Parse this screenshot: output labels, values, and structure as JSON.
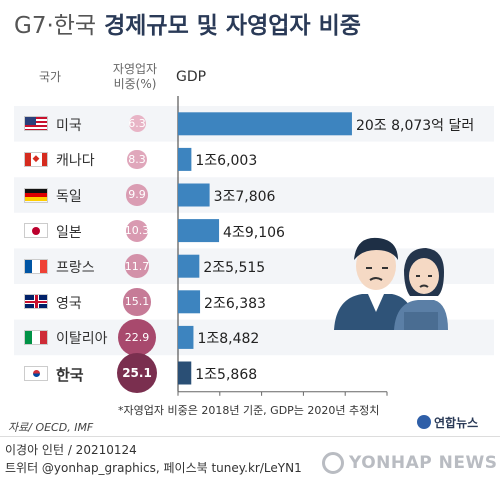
{
  "header": {
    "prefix": "G7·한국",
    "title": "경제규모 및 자영업자 비중"
  },
  "column_headers": {
    "country": "국가",
    "self_employed": "자영업자\n비중(%)",
    "gdp": "GDP"
  },
  "rows": [
    {
      "country": "미국",
      "flag": "flag-usa",
      "self_employed_pct": "6.3",
      "gdp_label": "20조 8,073억 달러",
      "bold": false
    },
    {
      "country": "캐나다",
      "flag": "flag-canada",
      "self_employed_pct": "8.3",
      "gdp_label": "1조6,003",
      "bold": false
    },
    {
      "country": "독일",
      "flag": "flag-germany",
      "self_employed_pct": "9.9",
      "gdp_label": "3조7,806",
      "bold": false
    },
    {
      "country": "일본",
      "flag": "flag-japan",
      "self_employed_pct": "10.3",
      "gdp_label": "4조9,106",
      "bold": false
    },
    {
      "country": "프랑스",
      "flag": "flag-france",
      "self_employed_pct": "11.7",
      "gdp_label": "2조5,515",
      "bold": false
    },
    {
      "country": "영국",
      "flag": "flag-uk",
      "self_employed_pct": "15.1",
      "gdp_label": "2조6,383",
      "bold": false
    },
    {
      "country": "이탈리아",
      "flag": "flag-italy",
      "self_employed_pct": "22.9",
      "gdp_label": "1조8,482",
      "bold": false
    },
    {
      "country": "한국",
      "flag": "flag-korea",
      "self_employed_pct": "25.1",
      "gdp_label": "1조5,868",
      "bold": true
    }
  ],
  "chart_data": {
    "type": "bar",
    "orientation": "horizontal",
    "categories": [
      "미국",
      "캐나다",
      "독일",
      "일본",
      "프랑스",
      "영국",
      "이탈리아",
      "한국"
    ],
    "series": [
      {
        "name": "GDP",
        "values": [
          20.8073,
          1.6003,
          3.7806,
          4.9106,
          2.5515,
          2.6383,
          1.8482,
          1.5868
        ]
      },
      {
        "name": "자영업자 비중(%)",
        "values": [
          6.3,
          8.3,
          9.9,
          10.3,
          11.7,
          15.1,
          22.9,
          25.1
        ]
      }
    ],
    "xlim": [
      0,
      25
    ],
    "xticks": [
      "0",
      "5",
      "10",
      "15",
      "20",
      "25"
    ],
    "colors": {
      "bar": "#3d84bf",
      "bar_highlight": "#2a4f75",
      "bubble_low": "#e8b4c6",
      "bubble_high": "#a8496d",
      "bubble_highlight": "#7a2f4f"
    }
  },
  "footnote": "*자영업자 비중은 2018년 기준, GDP는 2020년 추정치",
  "source": "자료/ OECD, IMF",
  "logo": "연합뉴스",
  "credits": {
    "line1": "이경아 인턴 /  20210124",
    "line2": "트위터 @yonhap_graphics, 페이스북 tuney.kr/LeYN1"
  },
  "watermark": "YONHAP NEWS"
}
